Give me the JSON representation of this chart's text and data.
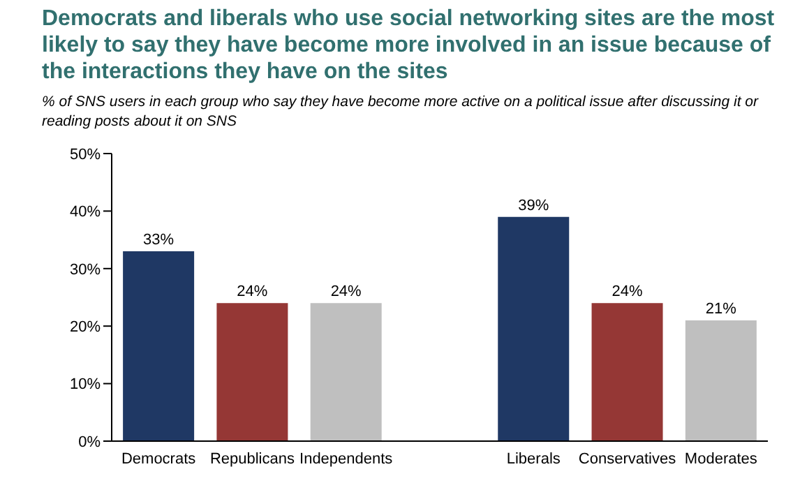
{
  "chart_data": {
    "type": "bar",
    "title": "Democrats and liberals who use social networking sites are the most likely to say they have become more involved in an issue because of the interactions they have on the sites",
    "subtitle": "% of SNS users in each group who say they have become more active on a political issue after discussing it or reading posts about it on SNS",
    "categories": [
      "Democrats",
      "Republicans",
      "Independents",
      null,
      "Liberals",
      "Conservatives",
      "Moderates"
    ],
    "values": [
      33,
      24,
      24,
      null,
      39,
      24,
      21
    ],
    "colors": [
      "#1f3864",
      "#953735",
      "#bfbfbf",
      null,
      "#1f3864",
      "#953735",
      "#bfbfbf"
    ],
    "value_labels": [
      "33%",
      "24%",
      "24%",
      null,
      "39%",
      "24%",
      "21%"
    ],
    "ylim": [
      0,
      50
    ],
    "yticks": [
      {
        "value": 0,
        "label": "0%"
      },
      {
        "value": 10,
        "label": "10%"
      },
      {
        "value": 20,
        "label": "20%"
      },
      {
        "value": 30,
        "label": "30%"
      },
      {
        "value": 40,
        "label": "40%"
      },
      {
        "value": 50,
        "label": "50%"
      }
    ],
    "grid": false
  }
}
